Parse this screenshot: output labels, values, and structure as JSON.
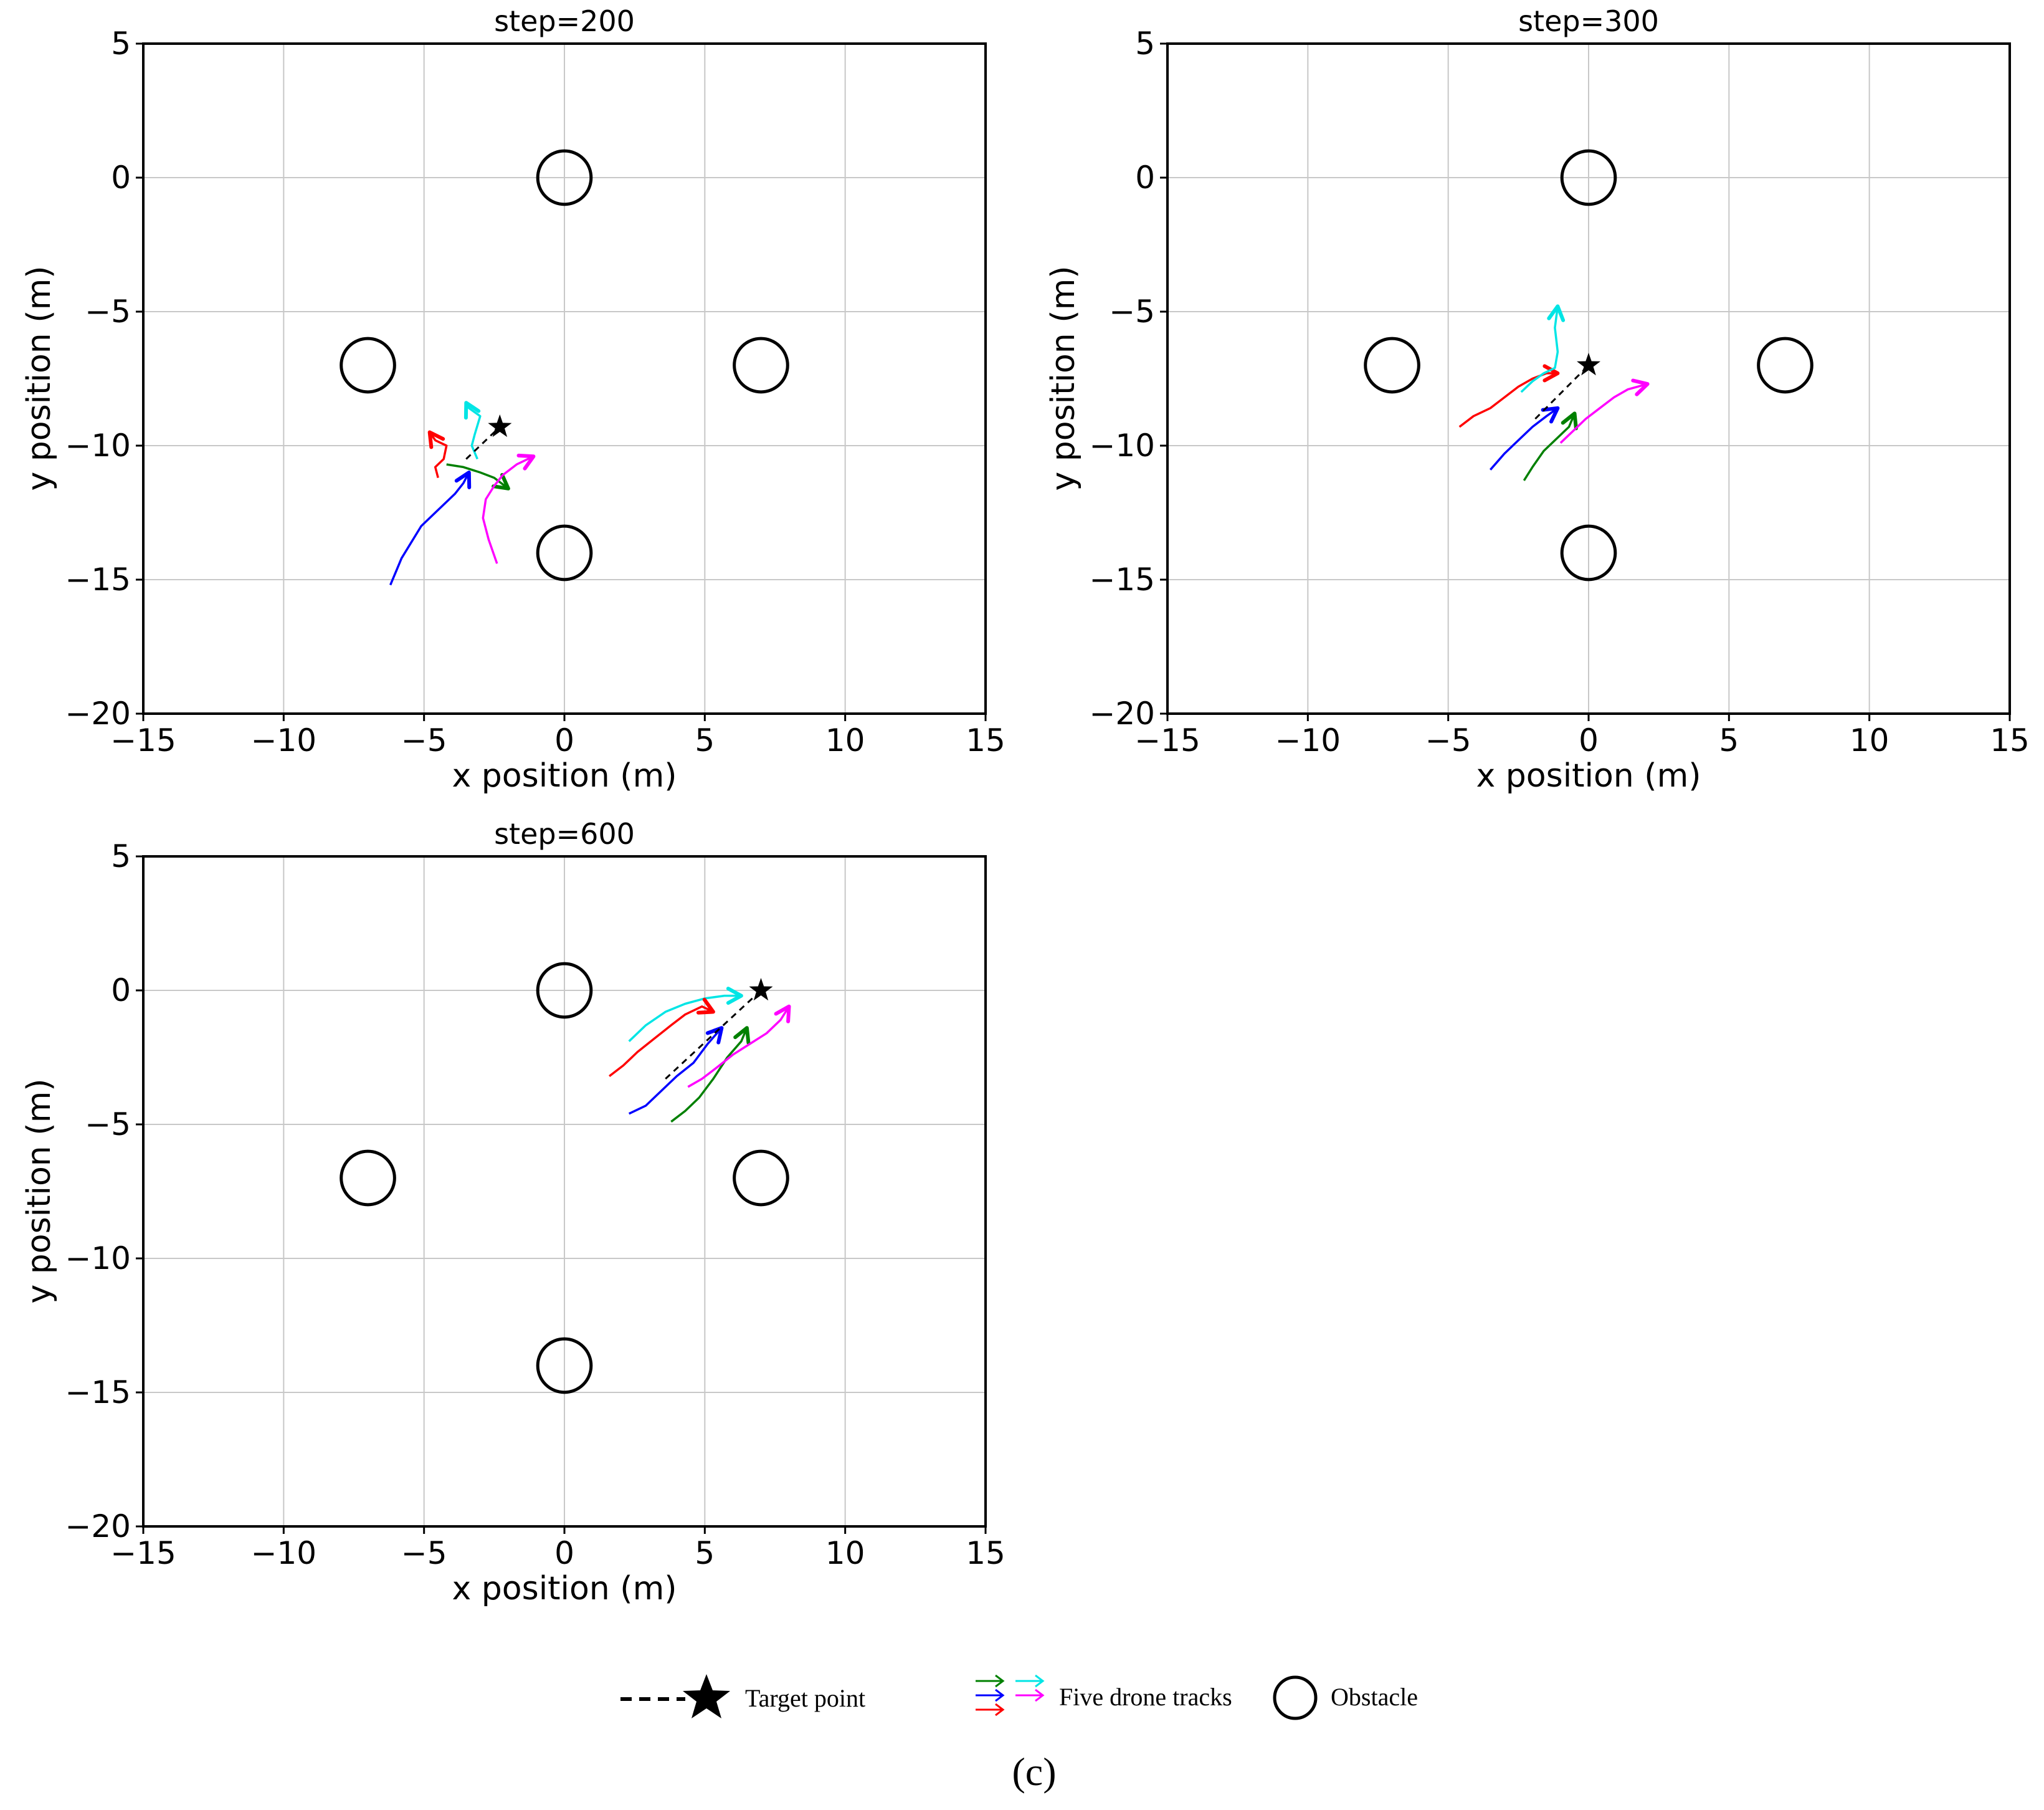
{
  "chart_data": [
    {
      "type": "line",
      "title": "step=200",
      "xlabel": "x position (m)",
      "ylabel": "y position (m)",
      "xlim": [
        -15,
        15
      ],
      "ylim": [
        -20,
        5
      ],
      "xticks": [
        -15,
        -10,
        -5,
        0,
        5,
        10,
        15
      ],
      "yticks": [
        5,
        0,
        -5,
        -10,
        -15,
        -20
      ],
      "grid": true,
      "obstacles": [
        {
          "x": 0,
          "y": 0
        },
        {
          "x": -7,
          "y": -7
        },
        {
          "x": 7,
          "y": -7
        },
        {
          "x": 0,
          "y": -14
        }
      ],
      "obstacle_radius": 0.95,
      "target": {
        "x": -2.3,
        "y": -9.3
      },
      "formation_center": {
        "x": -3.5,
        "y": -10.5
      },
      "series": [
        {
          "name": "blue",
          "color": "#0000ff",
          "x": [
            -6.2,
            -5.8,
            -5.1,
            -4.4,
            -3.9,
            -3.6,
            -3.4
          ],
          "y": [
            -15.2,
            -14.2,
            -13.0,
            -12.3,
            -11.8,
            -11.4,
            -11.0
          ]
        },
        {
          "name": "red",
          "color": "#ff0000",
          "x": [
            -4.5,
            -4.6,
            -4.3,
            -4.2,
            -4.6,
            -4.8
          ],
          "y": [
            -11.2,
            -10.8,
            -10.5,
            -10.0,
            -9.8,
            -9.5
          ]
        },
        {
          "name": "cyan",
          "color": "#00e5e5",
          "x": [
            -3.1,
            -3.3,
            -3.2,
            -3.0,
            -3.4,
            -3.5
          ],
          "y": [
            -10.5,
            -10.0,
            -9.6,
            -8.9,
            -8.6,
            -8.4
          ]
        },
        {
          "name": "green",
          "color": "#008000",
          "x": [
            -4.2,
            -3.6,
            -3.0,
            -2.5,
            -2.0
          ],
          "y": [
            -10.7,
            -10.8,
            -11.0,
            -11.2,
            -11.6
          ]
        },
        {
          "name": "magenta",
          "color": "#ff00ff",
          "x": [
            -2.4,
            -2.7,
            -2.9,
            -2.8,
            -2.5,
            -2.2,
            -1.7,
            -1.1
          ],
          "y": [
            -14.4,
            -13.5,
            -12.7,
            -12.0,
            -11.5,
            -11.1,
            -10.7,
            -10.4
          ]
        }
      ]
    },
    {
      "type": "line",
      "title": "step=300",
      "xlabel": "x position (m)",
      "ylabel": "y position (m)",
      "xlim": [
        -15,
        15
      ],
      "ylim": [
        -20,
        5
      ],
      "xticks": [
        -15,
        -10,
        -5,
        0,
        5,
        10,
        15
      ],
      "yticks": [
        5,
        0,
        -5,
        -10,
        -15,
        -20
      ],
      "grid": true,
      "obstacles": [
        {
          "x": 0,
          "y": 0
        },
        {
          "x": -7,
          "y": -7
        },
        {
          "x": 7,
          "y": -7
        },
        {
          "x": 0,
          "y": -14
        }
      ],
      "obstacle_radius": 0.95,
      "target": {
        "x": 0.0,
        "y": -7.0
      },
      "formation_center": {
        "x": -1.9,
        "y": -9.0
      },
      "series": [
        {
          "name": "red",
          "color": "#ff0000",
          "x": [
            -4.6,
            -4.1,
            -3.5,
            -3.0,
            -2.5,
            -2.0,
            -1.5,
            -1.1
          ],
          "y": [
            -9.3,
            -8.9,
            -8.6,
            -8.2,
            -7.8,
            -7.5,
            -7.3,
            -7.3
          ]
        },
        {
          "name": "cyan",
          "color": "#00e5e5",
          "x": [
            -2.4,
            -2.0,
            -1.6,
            -1.2,
            -1.1,
            -1.2,
            -1.1
          ],
          "y": [
            -8.0,
            -7.6,
            -7.3,
            -7.1,
            -6.5,
            -5.6,
            -4.8
          ]
        },
        {
          "name": "blue",
          "color": "#0000ff",
          "x": [
            -3.5,
            -3.0,
            -2.5,
            -2.0,
            -1.5,
            -1.1
          ],
          "y": [
            -10.9,
            -10.3,
            -9.8,
            -9.3,
            -8.9,
            -8.6
          ]
        },
        {
          "name": "green",
          "color": "#008000",
          "x": [
            -2.3,
            -2.0,
            -1.6,
            -1.1,
            -0.7,
            -0.5
          ],
          "y": [
            -11.3,
            -10.8,
            -10.2,
            -9.7,
            -9.3,
            -8.8
          ]
        },
        {
          "name": "magenta",
          "color": "#ff00ff",
          "x": [
            -1.0,
            -0.6,
            -0.1,
            0.4,
            0.9,
            1.4,
            2.1
          ],
          "y": [
            -9.9,
            -9.5,
            -9.0,
            -8.6,
            -8.2,
            -7.9,
            -7.7
          ]
        }
      ]
    },
    {
      "type": "line",
      "title": "step=600",
      "xlabel": "x position (m)",
      "ylabel": "y position (m)",
      "xlim": [
        -15,
        15
      ],
      "ylim": [
        -20,
        5
      ],
      "xticks": [
        -15,
        -10,
        -5,
        0,
        5,
        10,
        15
      ],
      "yticks": [
        5,
        0,
        -5,
        -10,
        -15,
        -20
      ],
      "grid": true,
      "obstacles": [
        {
          "x": 0,
          "y": 0
        },
        {
          "x": -7,
          "y": -7
        },
        {
          "x": 7,
          "y": -7
        },
        {
          "x": 0,
          "y": -14
        }
      ],
      "obstacle_radius": 0.95,
      "target": {
        "x": 7.0,
        "y": 0.0
      },
      "formation_center": {
        "x": 3.6,
        "y": -3.3
      },
      "series": [
        {
          "name": "cyan",
          "color": "#00e5e5",
          "x": [
            2.3,
            2.9,
            3.6,
            4.3,
            5.0,
            5.7,
            6.3
          ],
          "y": [
            -1.9,
            -1.3,
            -0.8,
            -0.5,
            -0.3,
            -0.2,
            -0.2
          ]
        },
        {
          "name": "red",
          "color": "#ff0000",
          "x": [
            1.6,
            2.1,
            2.6,
            3.2,
            3.8,
            4.3,
            4.9,
            5.3
          ],
          "y": [
            -3.2,
            -2.8,
            -2.3,
            -1.8,
            -1.3,
            -0.9,
            -0.6,
            -0.8
          ]
        },
        {
          "name": "blue",
          "color": "#0000ff",
          "x": [
            2.3,
            2.9,
            3.5,
            4.0,
            4.6,
            5.1,
            5.6
          ],
          "y": [
            -4.6,
            -4.3,
            -3.7,
            -3.2,
            -2.7,
            -2.0,
            -1.4
          ]
        },
        {
          "name": "green",
          "color": "#008000",
          "x": [
            3.8,
            4.3,
            4.8,
            5.3,
            5.8,
            6.3,
            6.5
          ],
          "y": [
            -4.9,
            -4.5,
            -4.0,
            -3.3,
            -2.5,
            -1.9,
            -1.4
          ]
        },
        {
          "name": "magenta",
          "color": "#ff00ff",
          "x": [
            4.4,
            4.9,
            5.4,
            6.0,
            6.6,
            7.2,
            7.7,
            8.0
          ],
          "y": [
            -3.6,
            -3.3,
            -2.9,
            -2.4,
            -2.0,
            -1.6,
            -1.1,
            -0.6
          ]
        }
      ]
    }
  ],
  "legend": {
    "target_label": "Target point",
    "tracks_label": "Five drone tracks",
    "obstacle_label": "Obstacle",
    "track_colors": [
      "#008000",
      "#00e5e5",
      "#0000ff",
      "#ff00ff",
      "#ff0000"
    ]
  },
  "caption": "(c)"
}
